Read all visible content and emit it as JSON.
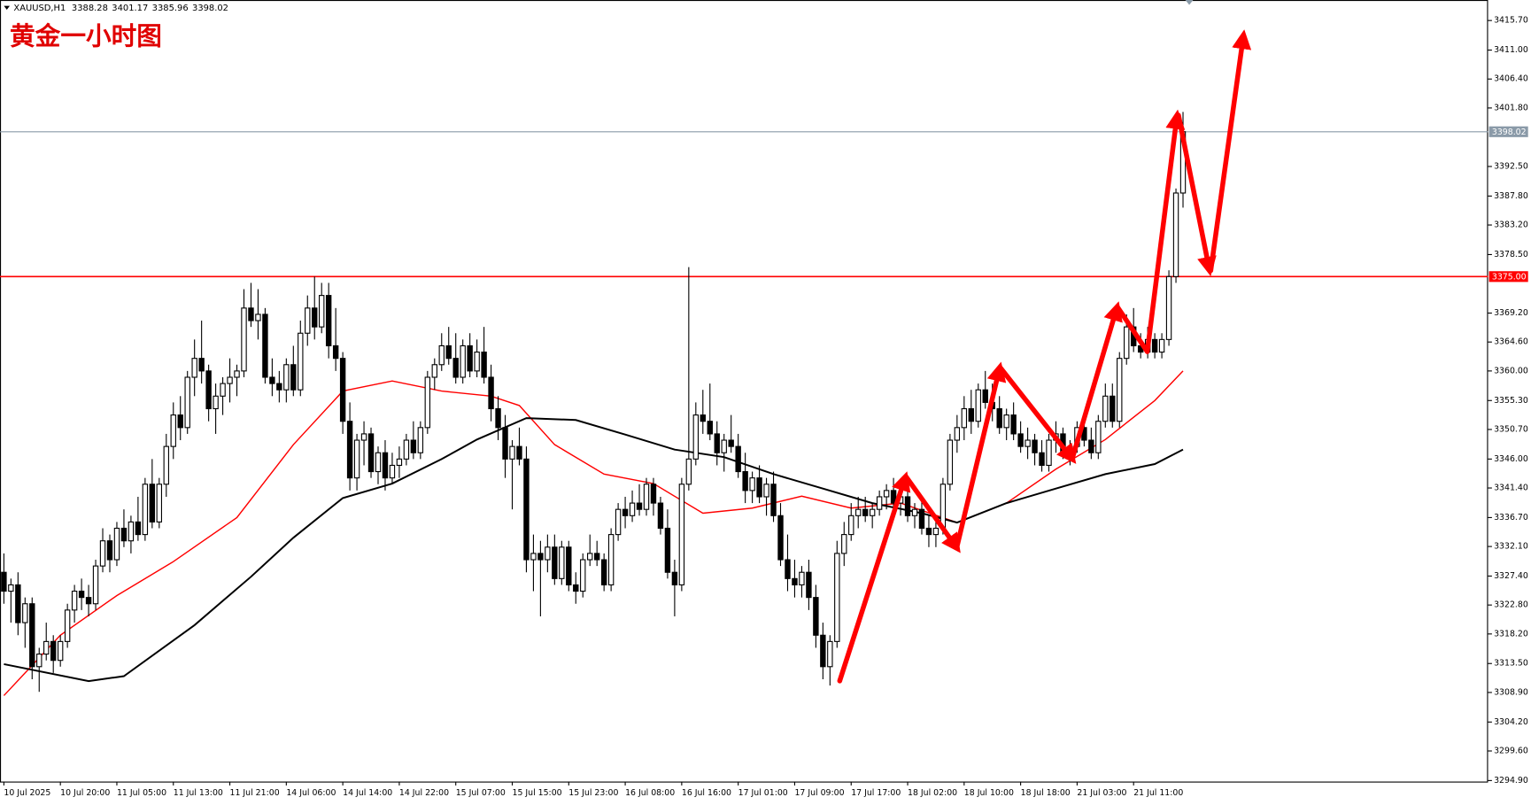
{
  "chart_data": {
    "type": "candlestick",
    "title": "黄金一小时图",
    "symbol": "XAUUSD,H1",
    "ylim": [
      3294.74,
      3418.96
    ],
    "xlim": [
      -0.55,
      210.2
    ],
    "yticks": [
      {
        "value": 3415.7,
        "label": "3415.70"
      },
      {
        "value": 3411,
        "label": "3411.00"
      },
      {
        "value": 3406.4,
        "label": "3406.40"
      },
      {
        "value": 3401.8,
        "label": "3401.80"
      },
      {
        "value": 3392.5,
        "label": "3392.50"
      },
      {
        "value": 3387.8,
        "label": "3387.80"
      },
      {
        "value": 3383.2,
        "label": "3383.20"
      },
      {
        "value": 3378.5,
        "label": "3378.50"
      },
      {
        "value": 3369.2,
        "label": "3369.20"
      },
      {
        "value": 3364.6,
        "label": "3364.60"
      },
      {
        "value": 3360,
        "label": "3360.00"
      },
      {
        "value": 3355.3,
        "label": "3355.30"
      },
      {
        "value": 3350.7,
        "label": "3350.70"
      },
      {
        "value": 3346,
        "label": "3346.00"
      },
      {
        "value": 3341.4,
        "label": "3341.40"
      },
      {
        "value": 3336.7,
        "label": "3336.70"
      },
      {
        "value": 3332.1,
        "label": "3332.10"
      },
      {
        "value": 3327.4,
        "label": "3327.40"
      },
      {
        "value": 3322.8,
        "label": "3322.80"
      },
      {
        "value": 3318.2,
        "label": "3318.20"
      },
      {
        "value": 3313.5,
        "label": "3313.50"
      },
      {
        "value": 3308.9,
        "label": "3308.90"
      },
      {
        "value": 3304.2,
        "label": "3304.20"
      },
      {
        "value": 3299.6,
        "label": "3299.60"
      },
      {
        "value": 3294.9,
        "label": "3294.90"
      }
    ],
    "xticks": [
      {
        "value": 0,
        "label": "10 Jul 2025"
      },
      {
        "value": 8,
        "label": "10 Jul 20:00"
      },
      {
        "value": 16,
        "label": "11 Jul 05:00"
      },
      {
        "value": 24,
        "label": "11 Jul 13:00"
      },
      {
        "value": 32,
        "label": "11 Jul 21:00"
      },
      {
        "value": 40,
        "label": "14 Jul 06:00"
      },
      {
        "value": 48,
        "label": "14 Jul 14:00"
      },
      {
        "value": 56,
        "label": "14 Jul 22:00"
      },
      {
        "value": 64,
        "label": "15 Jul 07:00"
      },
      {
        "value": 72,
        "label": "15 Jul 15:00"
      },
      {
        "value": 80,
        "label": "15 Jul 23:00"
      },
      {
        "value": 88,
        "label": "16 Jul 08:00"
      },
      {
        "value": 96,
        "label": "16 Jul 16:00"
      },
      {
        "value": 104,
        "label": "17 Jul 01:00"
      },
      {
        "value": 112,
        "label": "17 Jul 09:00"
      },
      {
        "value": 120,
        "label": "17 Jul 17:00"
      },
      {
        "value": 128,
        "label": "18 Jul 02:00"
      },
      {
        "value": 136,
        "label": "18 Jul 10:00"
      },
      {
        "value": 144,
        "label": "18 Jul 18:00"
      },
      {
        "value": 152,
        "label": "21 Jul 03:00"
      },
      {
        "value": 160,
        "label": "21 Jul 11:00"
      }
    ],
    "hlines": [
      {
        "value": 3375,
        "label": "3375.00",
        "color": "#ff0000"
      },
      {
        "value": 3398.02,
        "label": "3398.02",
        "color": "#8a9aa8"
      }
    ],
    "series": [
      {
        "color": "#ff0000",
        "x": [
          0,
          8,
          16,
          24,
          33,
          41,
          48,
          55,
          62,
          69,
          73,
          78,
          85,
          92,
          99,
          106,
          113,
          120,
          127,
          135,
          142,
          149,
          156,
          163,
          167
        ],
        "values": [
          3308.4,
          3318,
          3324.3,
          3329.7,
          3336.7,
          3348.3,
          3356.8,
          3358.4,
          3356.8,
          3356,
          3354.5,
          3348.3,
          3343.6,
          3342.1,
          3337.4,
          3338.2,
          3340.1,
          3338.2,
          3339,
          3335.9,
          3339,
          3344.4,
          3349.1,
          3355.3,
          3360
        ]
      },
      {
        "color": "#000000",
        "x": [
          0,
          12,
          17,
          27,
          35,
          41,
          48,
          55,
          62,
          67,
          74,
          81,
          88,
          95,
          102,
          109,
          116,
          123,
          130,
          135,
          142,
          149,
          156,
          163,
          167
        ],
        "values": [
          3313.4,
          3310.7,
          3311.5,
          3319.6,
          3327.3,
          3333.5,
          3339.8,
          3342.1,
          3346,
          3349.1,
          3352.5,
          3352.2,
          3349.9,
          3347.5,
          3346.3,
          3343.6,
          3341.3,
          3339,
          3337.4,
          3335.9,
          3339,
          3341.3,
          3343.6,
          3345.2,
          3347.5
        ]
      }
    ],
    "ohlc": [
      [
        3328,
        3331,
        3323,
        3325
      ],
      [
        3325,
        3327,
        3320,
        3326
      ],
      [
        3326,
        3328,
        3318,
        3320
      ],
      [
        3320,
        3324,
        3316,
        3323
      ],
      [
        3323,
        3324,
        3311,
        3313
      ],
      [
        3313,
        3316,
        3309,
        3315
      ],
      [
        3315,
        3320,
        3314,
        3317
      ],
      [
        3317,
        3318,
        3312,
        3314
      ],
      [
        3314,
        3318,
        3313,
        3317
      ],
      [
        3317,
        3323,
        3316,
        3322
      ],
      [
        3322,
        3326,
        3320,
        3325
      ],
      [
        3325,
        3327,
        3322,
        3324
      ],
      [
        3324,
        3326,
        3321,
        3323
      ],
      [
        3323,
        3330,
        3322,
        3329
      ],
      [
        3329,
        3335,
        3328,
        3333
      ],
      [
        3333,
        3334,
        3328,
        3330
      ],
      [
        3330,
        3336,
        3329,
        3335
      ],
      [
        3335,
        3338,
        3332,
        3333
      ],
      [
        3333,
        3337,
        3331,
        3336
      ],
      [
        3336,
        3340,
        3333,
        3334
      ],
      [
        3334,
        3343,
        3333,
        3342
      ],
      [
        3342,
        3346,
        3335,
        3336
      ],
      [
        3336,
        3343,
        3335,
        3342
      ],
      [
        3342,
        3350,
        3340,
        3348
      ],
      [
        3348,
        3355,
        3346,
        3353
      ],
      [
        3353,
        3356,
        3349,
        3351
      ],
      [
        3351,
        3360,
        3350,
        3359
      ],
      [
        3359,
        3365,
        3356,
        3362
      ],
      [
        3362,
        3368,
        3358,
        3360
      ],
      [
        3360,
        3361,
        3352,
        3354
      ],
      [
        3354,
        3358,
        3350,
        3356
      ],
      [
        3356,
        3359,
        3353,
        3358
      ],
      [
        3358,
        3362,
        3355,
        3359
      ],
      [
        3359,
        3361,
        3356,
        3360
      ],
      [
        3360,
        3373,
        3359,
        3370
      ],
      [
        3370,
        3374,
        3367,
        3368
      ],
      [
        3368,
        3373,
        3365,
        3369
      ],
      [
        3369,
        3370,
        3358,
        3359
      ],
      [
        3359,
        3362,
        3356,
        3358
      ],
      [
        3358,
        3360,
        3355,
        3357
      ],
      [
        3357,
        3362,
        3355,
        3361
      ],
      [
        3361,
        3364,
        3356,
        3357
      ],
      [
        3357,
        3368,
        3356,
        3366
      ],
      [
        3366,
        3372,
        3364,
        3370
      ],
      [
        3370,
        3375,
        3365,
        3367
      ],
      [
        3367,
        3374,
        3366,
        3372
      ],
      [
        3372,
        3374,
        3362,
        3364
      ],
      [
        3364,
        3370,
        3360,
        3362
      ],
      [
        3362,
        3363,
        3350,
        3352
      ],
      [
        3352,
        3355,
        3341,
        3343
      ],
      [
        3343,
        3350,
        3341,
        3349
      ],
      [
        3349,
        3352,
        3345,
        3350
      ],
      [
        3350,
        3351,
        3343,
        3344
      ],
      [
        3344,
        3348,
        3342,
        3347
      ],
      [
        3347,
        3349,
        3341,
        3343
      ],
      [
        3343,
        3347,
        3342,
        3345
      ],
      [
        3345,
        3348,
        3343,
        3346
      ],
      [
        3346,
        3350,
        3345,
        3349
      ],
      [
        3349,
        3352,
        3346,
        3347
      ],
      [
        3347,
        3352,
        3346,
        3351
      ],
      [
        3351,
        3360,
        3350,
        3359
      ],
      [
        3359,
        3362,
        3357,
        3361
      ],
      [
        3361,
        3366,
        3360,
        3364
      ],
      [
        3364,
        3367,
        3361,
        3362
      ],
      [
        3362,
        3366,
        3358,
        3359
      ],
      [
        3359,
        3365,
        3358,
        3364
      ],
      [
        3364,
        3366,
        3359,
        3360
      ],
      [
        3360,
        3365,
        3359,
        3363
      ],
      [
        3363,
        3367,
        3358,
        3359
      ],
      [
        3359,
        3361,
        3352,
        3354
      ],
      [
        3354,
        3356,
        3349,
        3351
      ],
      [
        3351,
        3353,
        3343,
        3346
      ],
      [
        3346,
        3349,
        3338,
        3348
      ],
      [
        3348,
        3351,
        3345,
        3346
      ],
      [
        3346,
        3348,
        3328,
        3330
      ],
      [
        3330,
        3334,
        3325,
        3331
      ],
      [
        3331,
        3333,
        3321,
        3330
      ],
      [
        3330,
        3334,
        3328,
        3332
      ],
      [
        3332,
        3334,
        3326,
        3327
      ],
      [
        3327,
        3333,
        3326,
        3332
      ],
      [
        3332,
        3333,
        3325,
        3326
      ],
      [
        3326,
        3328,
        3323,
        3325
      ],
      [
        3325,
        3331,
        3324,
        3330
      ],
      [
        3330,
        3334,
        3329,
        3331
      ],
      [
        3331,
        3333,
        3329,
        3330
      ],
      [
        3330,
        3331,
        3325,
        3326
      ],
      [
        3326,
        3335,
        3325,
        3334
      ],
      [
        3334,
        3339,
        3333,
        3338
      ],
      [
        3338,
        3340,
        3335,
        3337
      ],
      [
        3337,
        3341,
        3336,
        3339
      ],
      [
        3339,
        3342,
        3337,
        3338
      ],
      [
        3338,
        3343,
        3337,
        3342
      ],
      [
        3342,
        3343,
        3337,
        3339
      ],
      [
        3339,
        3340,
        3334,
        3335
      ],
      [
        3335,
        3338,
        3327,
        3328
      ],
      [
        3328,
        3330,
        3321,
        3326
      ],
      [
        3326,
        3343,
        3325,
        3342
      ],
      [
        3342,
        3376.5,
        3341,
        3346
      ],
      [
        3346,
        3355,
        3345,
        3353
      ],
      [
        3353,
        3357,
        3350,
        3352
      ],
      [
        3352,
        3358,
        3349,
        3350
      ],
      [
        3350,
        3352,
        3345,
        3347
      ],
      [
        3347,
        3350,
        3344,
        3349
      ],
      [
        3349,
        3353,
        3347,
        3348
      ],
      [
        3348,
        3350,
        3343,
        3344
      ],
      [
        3344,
        3347,
        3339,
        3341
      ],
      [
        3341,
        3344,
        3339,
        3343
      ],
      [
        3343,
        3345,
        3339,
        3340
      ],
      [
        3340,
        3343,
        3337,
        3342
      ],
      [
        3342,
        3344,
        3336,
        3337
      ],
      [
        3337,
        3339,
        3329,
        3330
      ],
      [
        3330,
        3334,
        3325,
        3327
      ],
      [
        3327,
        3330,
        3324,
        3326
      ],
      [
        3326,
        3329,
        3324,
        3328
      ],
      [
        3328,
        3330,
        3322,
        3324
      ],
      [
        3324,
        3326,
        3316,
        3318
      ],
      [
        3318,
        3320,
        3311,
        3313
      ],
      [
        3313,
        3318,
        3310,
        3317
      ],
      [
        3317,
        3333,
        3316,
        3331
      ],
      [
        3331,
        3336,
        3329,
        3334
      ],
      [
        3334,
        3339,
        3333,
        3337
      ],
      [
        3337,
        3340,
        3335,
        3338
      ],
      [
        3338,
        3340,
        3336,
        3337
      ],
      [
        3337,
        3339,
        3335,
        3338
      ],
      [
        3338,
        3341,
        3337,
        3340
      ],
      [
        3340,
        3342,
        3338,
        3341
      ],
      [
        3341,
        3343,
        3338,
        3339
      ],
      [
        3339,
        3341,
        3337,
        3340
      ],
      [
        3340,
        3341,
        3336,
        3337
      ],
      [
        3337,
        3339,
        3335,
        3338
      ],
      [
        3338,
        3340,
        3334,
        3335
      ],
      [
        3335,
        3337,
        3332,
        3334
      ],
      [
        3334,
        3336,
        3332,
        3335
      ],
      [
        3335,
        3343,
        3334,
        3342
      ],
      [
        3342,
        3350,
        3341,
        3349
      ],
      [
        3349,
        3353,
        3347,
        3351
      ],
      [
        3351,
        3356,
        3349,
        3354
      ],
      [
        3354,
        3357,
        3350,
        3352
      ],
      [
        3352,
        3358,
        3351,
        3357
      ],
      [
        3357,
        3360,
        3354,
        3355
      ],
      [
        3355,
        3358,
        3352,
        3354
      ],
      [
        3354,
        3356,
        3350,
        3351
      ],
      [
        3351,
        3354,
        3349,
        3353
      ],
      [
        3353,
        3355,
        3349,
        3350
      ],
      [
        3350,
        3352,
        3347,
        3348
      ],
      [
        3348,
        3351,
        3346,
        3349
      ],
      [
        3349,
        3350,
        3345,
        3347
      ],
      [
        3347,
        3349,
        3344,
        3345
      ],
      [
        3345,
        3350,
        3344,
        3349
      ],
      [
        3349,
        3352,
        3347,
        3350
      ],
      [
        3350,
        3351,
        3346,
        3347
      ],
      [
        3347,
        3349,
        3345,
        3348
      ],
      [
        3348,
        3352,
        3347,
        3351
      ],
      [
        3351,
        3353,
        3348,
        3349
      ],
      [
        3349,
        3351,
        3346,
        3347
      ],
      [
        3347,
        3353,
        3346,
        3352
      ],
      [
        3352,
        3358,
        3351,
        3356
      ],
      [
        3356,
        3358,
        3351,
        3352
      ],
      [
        3352,
        3363,
        3351,
        3362
      ],
      [
        3362,
        3369,
        3361,
        3367
      ],
      [
        3367,
        3370,
        3363,
        3364
      ],
      [
        3364,
        3366,
        3362,
        3363
      ],
      [
        3363,
        3367,
        3362,
        3365
      ],
      [
        3365,
        3366,
        3362,
        3363
      ],
      [
        3363,
        3366,
        3362,
        3365
      ],
      [
        3365,
        3376,
        3364,
        3375
      ],
      [
        3375,
        3389,
        3374,
        3388.28
      ],
      [
        3388.28,
        3401.17,
        3385.96,
        3398.02
      ]
    ]
  }
}
